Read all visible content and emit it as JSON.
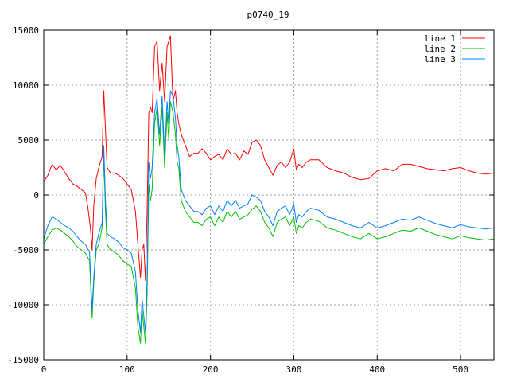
{
  "chart_data": {
    "type": "line",
    "title": "p0740_19",
    "xlabel": "",
    "ylabel": "",
    "xlim": [
      0,
      540
    ],
    "ylim": [
      -15000,
      15000
    ],
    "x_ticks": [
      0,
      100,
      200,
      300,
      400,
      500
    ],
    "y_ticks": [
      -15000,
      -10000,
      -5000,
      0,
      5000,
      10000,
      15000
    ],
    "grid": true,
    "legend_position": "top-right",
    "series": [
      {
        "name": "line 1",
        "color": "#ff0000",
        "x": [
          0,
          5,
          10,
          15,
          20,
          25,
          30,
          35,
          40,
          45,
          50,
          53,
          56,
          58,
          60,
          63,
          66,
          70,
          72,
          74,
          76,
          80,
          85,
          90,
          95,
          100,
          105,
          110,
          113,
          116,
          118,
          120,
          122,
          124,
          126,
          128,
          130,
          133,
          136,
          139,
          142,
          145,
          148,
          150,
          152,
          155,
          158,
          160,
          162,
          165,
          170,
          175,
          180,
          185,
          190,
          195,
          200,
          205,
          210,
          215,
          220,
          225,
          230,
          235,
          240,
          245,
          250,
          255,
          260,
          265,
          270,
          275,
          280,
          285,
          290,
          295,
          300,
          303,
          306,
          310,
          315,
          320,
          330,
          340,
          350,
          360,
          370,
          380,
          390,
          400,
          410,
          420,
          430,
          440,
          450,
          460,
          470,
          480,
          490,
          500,
          510,
          520,
          530,
          540
        ],
        "y": [
          1200,
          1800,
          2800,
          2300,
          2700,
          2100,
          1500,
          1000,
          800,
          500,
          200,
          -1200,
          -3000,
          -5000,
          -1000,
          1500,
          2500,
          3500,
          9500,
          6000,
          2500,
          2000,
          2000,
          1800,
          1500,
          1000,
          500,
          -1500,
          -4500,
          -7500,
          -5000,
          -4500,
          -7800,
          -1500,
          7500,
          8000,
          7500,
          13500,
          14000,
          9500,
          12000,
          8500,
          13500,
          14000,
          14500,
          8500,
          9500,
          7500,
          6500,
          5500,
          4500,
          3500,
          3800,
          3800,
          4200,
          3800,
          3200,
          3500,
          3700,
          3200,
          4200,
          3700,
          3800,
          3200,
          4000,
          3700,
          4800,
          5000,
          4500,
          3200,
          2500,
          1800,
          2700,
          3000,
          2500,
          3000,
          4200,
          2300,
          2800,
          2500,
          3000,
          3200,
          3200,
          2500,
          2200,
          2000,
          1600,
          1400,
          1500,
          2200,
          2400,
          2200,
          2800,
          2800,
          2600,
          2400,
          2300,
          2200,
          2400,
          2500,
          2200,
          2000,
          1900,
          2000
        ]
      },
      {
        "name": "line 2",
        "color": "#00c000",
        "x": [
          0,
          5,
          10,
          15,
          20,
          25,
          30,
          35,
          40,
          45,
          50,
          55,
          58,
          60,
          63,
          66,
          70,
          72,
          74,
          76,
          80,
          85,
          90,
          95,
          100,
          105,
          110,
          113,
          116,
          118,
          120,
          122,
          124,
          126,
          128,
          130,
          133,
          136,
          139,
          142,
          145,
          148,
          150,
          152,
          155,
          158,
          160,
          162,
          165,
          170,
          175,
          180,
          185,
          190,
          195,
          200,
          205,
          210,
          215,
          220,
          225,
          230,
          235,
          240,
          245,
          250,
          255,
          260,
          265,
          270,
          275,
          280,
          285,
          290,
          295,
          300,
          303,
          306,
          310,
          315,
          320,
          330,
          340,
          350,
          360,
          370,
          380,
          390,
          400,
          410,
          420,
          430,
          440,
          450,
          460,
          470,
          480,
          490,
          500,
          510,
          520,
          530,
          540
        ],
        "y": [
          -4500,
          -3800,
          -3200,
          -3000,
          -3200,
          -3500,
          -3800,
          -4200,
          -4700,
          -5000,
          -5300,
          -6000,
          -11200,
          -8000,
          -5000,
          -4500,
          -3000,
          3800,
          -1500,
          -4500,
          -5000,
          -5200,
          -5500,
          -6000,
          -6300,
          -6500,
          -8500,
          -12000,
          -13500,
          -10500,
          -12000,
          -13500,
          -9000,
          1000,
          -500,
          500,
          6500,
          8000,
          4500,
          8000,
          2500,
          7500,
          5000,
          8500,
          7500,
          5500,
          3000,
          2500,
          -500,
          -1500,
          -2000,
          -2500,
          -2500,
          -2800,
          -2200,
          -2000,
          -2800,
          -2000,
          -2500,
          -1500,
          -2000,
          -1500,
          -2200,
          -2000,
          -1800,
          -1300,
          -1000,
          -1500,
          -2500,
          -3000,
          -3800,
          -2500,
          -2200,
          -2000,
          -2800,
          -2000,
          -3500,
          -2800,
          -3000,
          -2500,
          -2200,
          -2400,
          -3000,
          -3200,
          -3500,
          -3800,
          -4000,
          -3500,
          -4000,
          -3800,
          -3500,
          -3200,
          -3300,
          -3000,
          -3300,
          -3600,
          -3800,
          -4000,
          -3700,
          -3900,
          -4000,
          -4100,
          -4000
        ]
      },
      {
        "name": "line 3",
        "color": "#0080ff",
        "x": [
          0,
          5,
          10,
          15,
          20,
          25,
          30,
          35,
          40,
          45,
          50,
          55,
          58,
          60,
          63,
          66,
          70,
          72,
          74,
          76,
          80,
          85,
          90,
          95,
          100,
          105,
          110,
          113,
          116,
          118,
          120,
          122,
          124,
          126,
          128,
          130,
          133,
          136,
          139,
          142,
          145,
          148,
          150,
          152,
          155,
          158,
          160,
          162,
          165,
          170,
          175,
          180,
          185,
          190,
          195,
          200,
          205,
          210,
          215,
          220,
          225,
          230,
          235,
          240,
          245,
          250,
          255,
          260,
          265,
          270,
          275,
          280,
          285,
          290,
          295,
          300,
          303,
          306,
          310,
          315,
          320,
          330,
          340,
          350,
          360,
          370,
          380,
          390,
          400,
          410,
          420,
          430,
          440,
          450,
          460,
          470,
          480,
          490,
          500,
          510,
          520,
          530,
          540
        ],
        "y": [
          -4000,
          -2800,
          -2000,
          -2200,
          -2500,
          -2800,
          -3000,
          -3300,
          -3800,
          -4200,
          -4500,
          -5200,
          -10500,
          -7500,
          -4500,
          -3500,
          -2500,
          4500,
          -500,
          -3500,
          -3800,
          -4000,
          -4300,
          -4800,
          -5000,
          -5300,
          -7000,
          -10500,
          -12500,
          -9500,
          -11000,
          -12500,
          -7500,
          3000,
          1500,
          2500,
          7500,
          8800,
          5500,
          9000,
          3500,
          8500,
          6500,
          9500,
          9000,
          7000,
          4500,
          3500,
          500,
          -500,
          -1000,
          -1500,
          -1500,
          -1800,
          -1200,
          -1000,
          -1800,
          -1000,
          -1500,
          -500,
          -1000,
          -500,
          -1200,
          -1000,
          -800,
          0,
          -200,
          -500,
          -1500,
          -2000,
          -2800,
          -1500,
          -1200,
          -1000,
          -1800,
          -800,
          -2500,
          -1800,
          -2000,
          -1500,
          -1200,
          -1400,
          -2000,
          -2200,
          -2500,
          -2800,
          -3000,
          -2500,
          -3000,
          -2800,
          -2500,
          -2200,
          -2300,
          -2000,
          -2300,
          -2600,
          -2800,
          -3000,
          -2700,
          -2900,
          -3000,
          -3100,
          -3000
        ]
      }
    ]
  }
}
